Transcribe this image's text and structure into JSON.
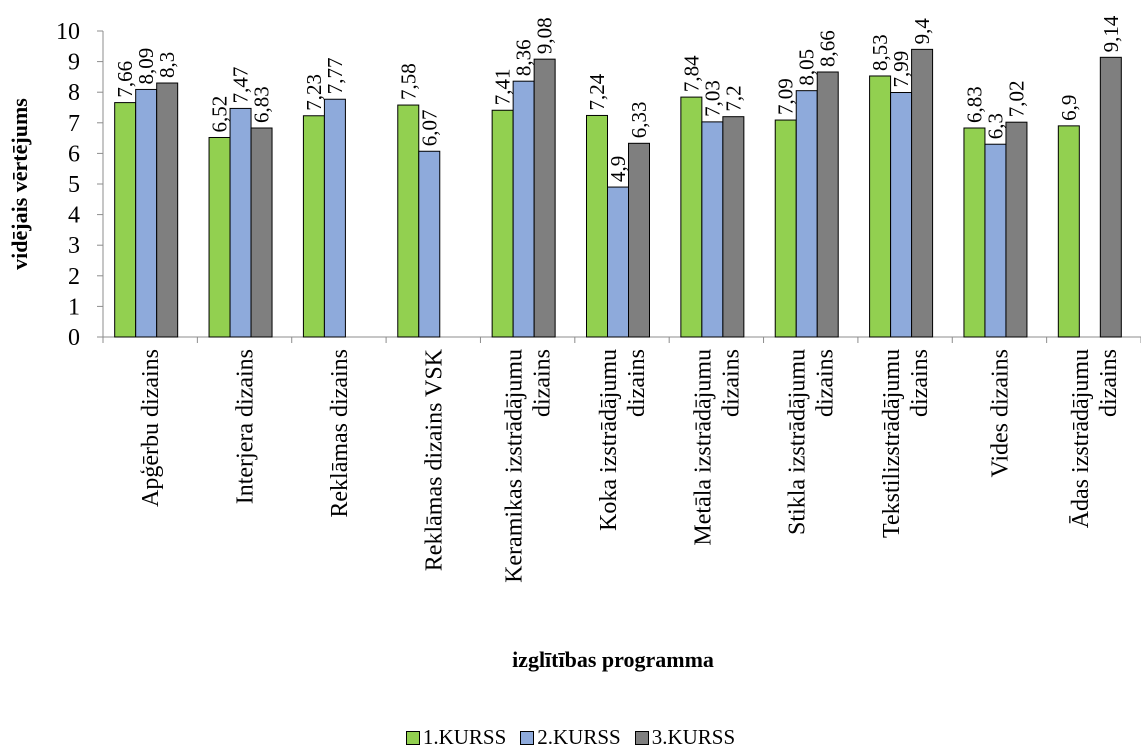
{
  "chart_data": {
    "type": "bar",
    "ylabel": "vidējais vērtējums",
    "xlabel": "izglītības programma",
    "ylim": [
      0,
      10
    ],
    "yticks": [
      "0",
      "1",
      "2",
      "3",
      "4",
      "5",
      "6",
      "7",
      "8",
      "9",
      "10"
    ],
    "legend_position": "bottom",
    "grid": false,
    "categories": [
      [
        "Apģērbu dizains"
      ],
      [
        "Interjera dizains"
      ],
      [
        "Reklāmas dizains"
      ],
      [
        "Reklāmas dizains VSK"
      ],
      [
        "Keramikas izstrādājumu",
        "dizains"
      ],
      [
        "Koka izstrādājumu",
        "dizains"
      ],
      [
        "Metāla izstrādājumu",
        "dizains"
      ],
      [
        "Stikla izstrādājumu",
        "dizains"
      ],
      [
        "Tekstilizstrādājumu",
        "dizains"
      ],
      [
        "Vides dizains"
      ],
      [
        "Ādas izstrādājumu",
        "dizains"
      ]
    ],
    "series": [
      {
        "name": "1.KURSS",
        "color": "#92d050",
        "values": [
          7.66,
          6.52,
          7.23,
          7.58,
          7.41,
          7.24,
          7.84,
          7.09,
          8.53,
          6.83,
          6.9
        ],
        "labels": [
          "7,66",
          "6,52",
          "7,23",
          "7,58",
          "7,41",
          "7,24",
          "7,84",
          "7,09",
          "8,53",
          "6,83",
          "6,9"
        ]
      },
      {
        "name": "2.KURSS",
        "color": "#8eaadb",
        "values": [
          8.09,
          7.47,
          7.77,
          6.07,
          8.36,
          4.9,
          7.03,
          8.05,
          7.99,
          6.3,
          null
        ],
        "labels": [
          "8,09",
          "7,47",
          "7,77",
          "6,07",
          "8,36",
          "4,9",
          "7,03",
          "8,05",
          "7,99",
          "6,3",
          null
        ]
      },
      {
        "name": "3.KURSS",
        "color": "#7f7f7f",
        "values": [
          8.3,
          6.83,
          null,
          null,
          9.08,
          6.33,
          7.2,
          8.66,
          9.4,
          7.02,
          9.14
        ],
        "labels": [
          "8,3",
          "6,83",
          null,
          null,
          "9,08",
          "6,33",
          "7,2",
          "8,66",
          "9,4",
          "7,02",
          "9,14"
        ]
      }
    ]
  }
}
